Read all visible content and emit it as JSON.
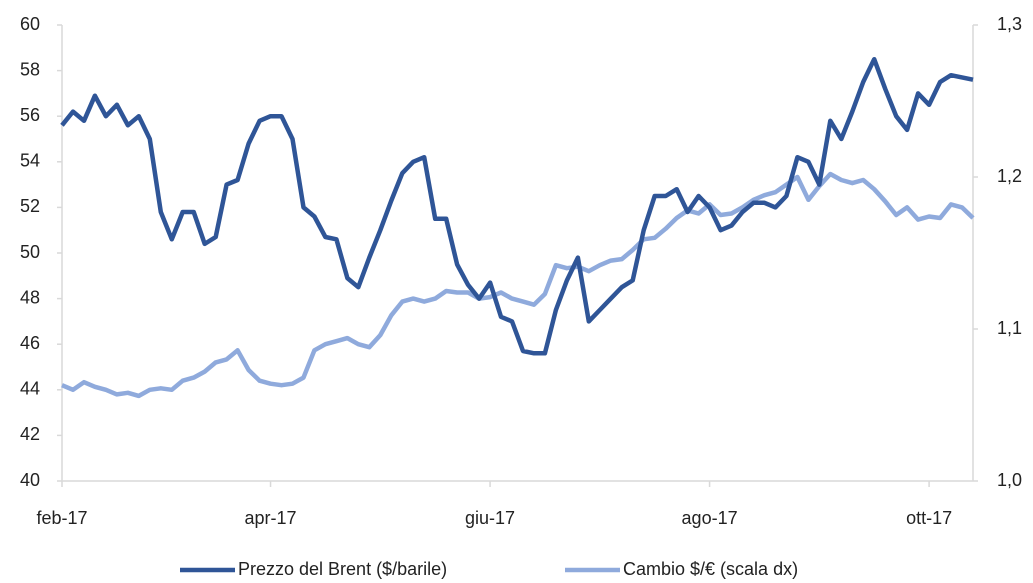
{
  "chart_data": {
    "type": "line",
    "categories": [
      "feb-17",
      null,
      null,
      null,
      null,
      null,
      null,
      null,
      null,
      null,
      null,
      null,
      null,
      null,
      null,
      null,
      null,
      null,
      null,
      "apr-17",
      null,
      null,
      null,
      null,
      null,
      null,
      null,
      null,
      null,
      null,
      null,
      null,
      null,
      null,
      null,
      null,
      null,
      null,
      null,
      "giu-17",
      null,
      null,
      null,
      null,
      null,
      null,
      null,
      null,
      null,
      null,
      null,
      null,
      null,
      null,
      null,
      null,
      null,
      null,
      null,
      "ago-17",
      null,
      null,
      null,
      null,
      null,
      null,
      null,
      null,
      null,
      null,
      null,
      null,
      null,
      null,
      null,
      null,
      null,
      null,
      null,
      "ott-17",
      null,
      null,
      null,
      null
    ],
    "series": [
      {
        "name": "Prezzo del Brent ($/barile)",
        "color": "#2f5597",
        "values": [
          55.6,
          56.2,
          55.8,
          56.9,
          56.0,
          56.5,
          55.6,
          56.0,
          55.0,
          51.8,
          50.6,
          51.8,
          51.8,
          50.4,
          50.7,
          53.0,
          53.2,
          54.8,
          55.8,
          56.0,
          56.0,
          55.0,
          52.0,
          51.6,
          50.7,
          50.6,
          48.9,
          48.5,
          49.8,
          51.0,
          52.3,
          53.5,
          54.0,
          54.2,
          51.5,
          51.5,
          49.5,
          48.6,
          48.0,
          48.7,
          47.2,
          47.0,
          45.7,
          45.6,
          45.6,
          47.5,
          48.8,
          49.8,
          47.0,
          47.5,
          48.0,
          48.5,
          48.8,
          51.0,
          52.5,
          52.5,
          52.8,
          51.8,
          52.5,
          52.0,
          51.0,
          51.2,
          51.8,
          52.2,
          52.2,
          52.0,
          52.5,
          54.2,
          54.0,
          53.0,
          55.8,
          55.0,
          56.2,
          57.5,
          58.5,
          57.2,
          56.0,
          55.4,
          57.0,
          56.5,
          57.5,
          57.8,
          57.7,
          57.6
        ]
      },
      {
        "name": "Cambio $/€ (scala dx)",
        "color": "#8faadc",
        "axis": "y2",
        "values": [
          1.063,
          1.06,
          1.065,
          1.062,
          1.06,
          1.057,
          1.058,
          1.056,
          1.06,
          1.061,
          1.06,
          1.066,
          1.068,
          1.072,
          1.078,
          1.08,
          1.086,
          1.073,
          1.066,
          1.064,
          1.063,
          1.064,
          1.068,
          1.086,
          1.09,
          1.092,
          1.094,
          1.09,
          1.088,
          1.096,
          1.109,
          1.118,
          1.12,
          1.118,
          1.12,
          1.125,
          1.124,
          1.124,
          1.12,
          1.121,
          1.124,
          1.12,
          1.118,
          1.116,
          1.123,
          1.142,
          1.14,
          1.141,
          1.138,
          1.142,
          1.145,
          1.146,
          1.152,
          1.159,
          1.16,
          1.166,
          1.173,
          1.178,
          1.176,
          1.182,
          1.175,
          1.176,
          1.18,
          1.185,
          1.188,
          1.19,
          1.195,
          1.2,
          1.185,
          1.194,
          1.202,
          1.198,
          1.196,
          1.198,
          1.192,
          1.184,
          1.175,
          1.18,
          1.172,
          1.174,
          1.173,
          1.182,
          1.18,
          1.173
        ]
      }
    ],
    "ylim": [
      40,
      60
    ],
    "yticks": [
      40,
      42,
      44,
      46,
      48,
      50,
      52,
      54,
      56,
      58,
      60
    ],
    "y2lim": [
      1.0,
      1.3
    ],
    "y2ticks": [
      {
        "value": 1.0,
        "label": "1,0"
      },
      {
        "value": 1.1,
        "label": "1,1"
      },
      {
        "value": 1.2,
        "label": "1,2"
      },
      {
        "value": 1.3,
        "label": "1,3"
      }
    ],
    "grid": false,
    "legend": "bottom"
  }
}
